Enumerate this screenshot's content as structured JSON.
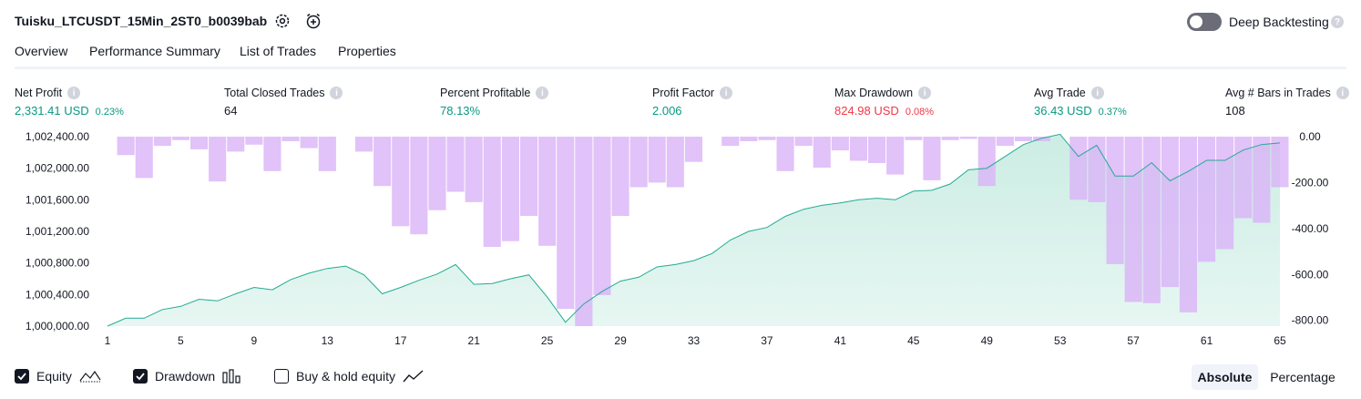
{
  "header": {
    "title": "Tuisku_LTCUSDT_15Min_2ST0_b0039bab",
    "deep_backtesting_label": "Deep Backtesting",
    "deep_backtesting_on": false
  },
  "tabs": [
    {
      "label": "Overview",
      "active": true
    },
    {
      "label": "Performance Summary",
      "active": false
    },
    {
      "label": "List of Trades",
      "active": false
    },
    {
      "label": "Properties",
      "active": false
    }
  ],
  "metrics": [
    {
      "label": "Net Profit",
      "value": "2,331.41 USD",
      "pct": "0.23%",
      "color": "#089981"
    },
    {
      "label": "Total Closed Trades",
      "value": "64",
      "pct": "",
      "color": "#131722"
    },
    {
      "label": "Percent Profitable",
      "value": "78.13%",
      "pct": "",
      "color": "#089981"
    },
    {
      "label": "Profit Factor",
      "value": "2.006",
      "pct": "",
      "color": "#089981"
    },
    {
      "label": "Max Drawdown",
      "value": "824.98 USD",
      "pct": "0.08%",
      "color": "#f23645"
    },
    {
      "label": "Avg Trade",
      "value": "36.43 USD",
      "pct": "0.37%",
      "color": "#089981"
    },
    {
      "label": "Avg # Bars in Trades",
      "value": "108",
      "pct": "",
      "color": "#131722"
    }
  ],
  "legend": {
    "equity_label": "Equity",
    "drawdown_label": "Drawdown",
    "buyhold_label": "Buy & hold equity",
    "equity_checked": true,
    "drawdown_checked": true,
    "buyhold_checked": false
  },
  "mode": {
    "absolute_label": "Absolute",
    "percentage_label": "Percentage",
    "selected": "Absolute"
  },
  "colors": {
    "equity_line": "#22ab94",
    "equity_fill": "#c9ece2",
    "drawdown_bar": "#d9b3f7"
  },
  "chart_data": {
    "type": "bar+area",
    "x_ticks": [
      "1",
      "5",
      "9",
      "13",
      "17",
      "21",
      "25",
      "29",
      "33",
      "37",
      "41",
      "45",
      "49",
      "53",
      "57",
      "61",
      "65"
    ],
    "left_axis": {
      "ticks": [
        "1,002,400.00",
        "1,002,000.00",
        "1,001,600.00",
        "1,001,200.00",
        "1,000,800.00",
        "1,000,400.00",
        "1,000,000.00"
      ],
      "range": [
        1000000,
        1002400
      ]
    },
    "right_axis": {
      "ticks": [
        "0.00",
        "-200.00",
        "-400.00",
        "-600.00",
        "-800.00"
      ],
      "range": [
        -824.98,
        0
      ]
    },
    "series": [
      {
        "name": "Equity",
        "x": [
          1,
          2,
          3,
          4,
          5,
          6,
          7,
          8,
          9,
          10,
          11,
          12,
          13,
          14,
          15,
          16,
          17,
          18,
          19,
          20,
          21,
          22,
          23,
          24,
          25,
          26,
          27,
          28,
          29,
          30,
          31,
          32,
          33,
          34,
          35,
          36,
          37,
          38,
          39,
          40,
          41,
          42,
          43,
          44,
          45,
          46,
          47,
          48,
          49,
          50,
          51,
          52,
          53,
          54,
          55,
          56,
          57,
          58,
          59,
          60,
          61,
          62,
          63,
          64,
          65
        ],
        "values": [
          1000000,
          1000100,
          1000100,
          1000210,
          1000250,
          1000340,
          1000320,
          1000410,
          1000490,
          1000460,
          1000590,
          1000670,
          1000730,
          1000760,
          1000650,
          1000410,
          1000490,
          1000580,
          1000660,
          1000780,
          1000530,
          1000540,
          1000600,
          1000650,
          1000370,
          1000050,
          1000280,
          1000440,
          1000570,
          1000620,
          1000750,
          1000780,
          1000830,
          1000920,
          1001090,
          1001200,
          1001250,
          1001390,
          1001480,
          1001530,
          1001560,
          1001600,
          1001620,
          1001600,
          1001710,
          1001720,
          1001800,
          1001980,
          1002000,
          1002150,
          1002300,
          1002380,
          1002430,
          1002150,
          1002290,
          1001900,
          1001900,
          1002070,
          1001840,
          1001960,
          1002100,
          1002100,
          1002230,
          1002300,
          1002320
        ]
      },
      {
        "name": "Drawdown",
        "x": [
          1,
          2,
          3,
          4,
          5,
          6,
          7,
          8,
          9,
          10,
          11,
          12,
          13,
          14,
          15,
          16,
          17,
          18,
          19,
          20,
          21,
          22,
          23,
          24,
          25,
          26,
          27,
          28,
          29,
          30,
          31,
          32,
          33,
          34,
          35,
          36,
          37,
          38,
          39,
          40,
          41,
          42,
          43,
          44,
          45,
          46,
          47,
          48,
          49,
          50,
          51,
          52,
          53,
          54,
          55,
          56,
          57,
          58,
          59,
          60,
          61,
          62,
          63,
          64,
          65
        ],
        "values": [
          0,
          -80,
          -180,
          -40,
          -15,
          -55,
          -195,
          -65,
          -35,
          -150,
          -20,
          -50,
          -150,
          0,
          -65,
          -215,
          -390,
          -425,
          -320,
          -240,
          -285,
          -480,
          -455,
          -345,
          -475,
          -750,
          -825,
          -690,
          -345,
          -220,
          -200,
          -220,
          -110,
          0,
          -40,
          -20,
          -15,
          -150,
          -40,
          -135,
          -60,
          -105,
          -115,
          -165,
          -15,
          -190,
          -15,
          -10,
          -215,
          -40,
          -20,
          -20,
          0,
          -275,
          -285,
          -555,
          -720,
          -725,
          -655,
          -765,
          -545,
          -490,
          -355,
          -375,
          -220
        ]
      }
    ]
  }
}
